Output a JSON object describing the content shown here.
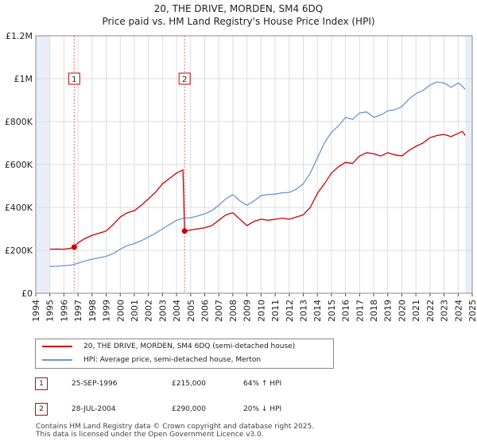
{
  "colors": {
    "property_line": "#cc0000",
    "hpi_line": "#6699cc",
    "sale_marker": "#cc0000",
    "vline": "#e07070",
    "shade": "#e8eef8",
    "grid": "#dddddd"
  },
  "chart_data": {
    "type": "line",
    "title": "20, THE DRIVE, MORDEN, SM4 6DQ",
    "subtitle": "Price paid vs. HM Land Registry's House Price Index (HPI)",
    "xlabel": "",
    "ylabel": "",
    "xlim": [
      1994,
      2025
    ],
    "ylim": [
      0,
      1200000
    ],
    "x_ticks": [
      "1994",
      "1995",
      "1996",
      "1997",
      "1998",
      "1999",
      "2000",
      "2001",
      "2002",
      "2003",
      "2004",
      "2005",
      "2006",
      "2007",
      "2008",
      "2009",
      "2010",
      "2011",
      "2012",
      "2013",
      "2014",
      "2015",
      "2016",
      "2017",
      "2018",
      "2019",
      "2020",
      "2021",
      "2022",
      "2023",
      "2024",
      "2025"
    ],
    "y_ticks": [
      {
        "value": 0,
        "label": "£0"
      },
      {
        "value": 200000,
        "label": "£200K"
      },
      {
        "value": 400000,
        "label": "£400K"
      },
      {
        "value": 600000,
        "label": "£600K"
      },
      {
        "value": 800000,
        "label": "£800K"
      },
      {
        "value": 1000000,
        "label": "£1M"
      },
      {
        "value": 1200000,
        "label": "£1.2M"
      }
    ],
    "grid": true,
    "shaded_ranges": [
      [
        1994,
        1995
      ],
      [
        2024.5,
        2025
      ]
    ],
    "sale_lines": [
      {
        "x": 1996.73,
        "label": "1"
      },
      {
        "x": 2004.57,
        "label": "2"
      }
    ],
    "sale_points": [
      {
        "x": 1996.73,
        "y": 215000
      },
      {
        "x": 2004.57,
        "y": 290000
      }
    ],
    "series": [
      {
        "name": "20, THE DRIVE, MORDEN, SM4 6DQ (semi-detached house)",
        "color": "#cc0000",
        "x": [
          1995,
          1995.5,
          1996,
          1996.5,
          1996.73,
          1997,
          1997.5,
          1998,
          1998.5,
          1999,
          1999.5,
          2000,
          2000.5,
          2001,
          2001.5,
          2002,
          2002.5,
          2003,
          2003.5,
          2004,
          2004.3,
          2004.45,
          2004.5,
          2004.57,
          2005,
          2005.5,
          2006,
          2006.5,
          2007,
          2007.5,
          2008,
          2008.5,
          2009,
          2009.5,
          2010,
          2010.5,
          2011,
          2011.5,
          2012,
          2012.5,
          2013,
          2013.5,
          2014,
          2014.5,
          2015,
          2015.5,
          2016,
          2016.5,
          2017,
          2017.5,
          2018,
          2018.5,
          2019,
          2019.5,
          2020,
          2020.5,
          2021,
          2021.5,
          2022,
          2022.5,
          2023,
          2023.5,
          2024,
          2024.3,
          2024.5
        ],
        "values": [
          205000,
          206000,
          205000,
          210000,
          215000,
          235000,
          255000,
          270000,
          280000,
          290000,
          320000,
          355000,
          375000,
          385000,
          410000,
          440000,
          470000,
          510000,
          535000,
          560000,
          570000,
          575000,
          460000,
          290000,
          295000,
          300000,
          305000,
          315000,
          340000,
          365000,
          375000,
          345000,
          315000,
          335000,
          345000,
          340000,
          345000,
          350000,
          345000,
          355000,
          365000,
          400000,
          465000,
          510000,
          560000,
          590000,
          610000,
          605000,
          640000,
          655000,
          650000,
          640000,
          655000,
          645000,
          640000,
          665000,
          685000,
          700000,
          725000,
          735000,
          740000,
          730000,
          745000,
          755000,
          735000
        ]
      },
      {
        "name": "HPI: Average price, semi-detached house, Merton",
        "color": "#6699cc",
        "x": [
          1995,
          1995.5,
          1996,
          1996.5,
          1997,
          1997.5,
          1998,
          1998.5,
          1999,
          1999.5,
          2000,
          2000.5,
          2001,
          2001.5,
          2002,
          2002.5,
          2003,
          2003.5,
          2004,
          2004.5,
          2005,
          2005.5,
          2006,
          2006.5,
          2007,
          2007.5,
          2008,
          2008.5,
          2009,
          2009.5,
          2010,
          2010.5,
          2011,
          2011.5,
          2012,
          2012.5,
          2013,
          2013.5,
          2014,
          2014.5,
          2015,
          2015.5,
          2016,
          2016.5,
          2017,
          2017.5,
          2018,
          2018.5,
          2019,
          2019.5,
          2020,
          2020.5,
          2021,
          2021.5,
          2022,
          2022.5,
          2023,
          2023.5,
          2024,
          2024.3,
          2024.5
        ],
        "values": [
          125000,
          126000,
          128000,
          131000,
          140000,
          150000,
          158000,
          165000,
          172000,
          185000,
          205000,
          222000,
          232000,
          245000,
          262000,
          280000,
          300000,
          320000,
          340000,
          350000,
          352000,
          360000,
          370000,
          385000,
          410000,
          440000,
          460000,
          430000,
          410000,
          430000,
          455000,
          460000,
          462000,
          468000,
          470000,
          485000,
          510000,
          560000,
          630000,
          700000,
          750000,
          780000,
          820000,
          810000,
          840000,
          845000,
          820000,
          830000,
          850000,
          855000,
          870000,
          905000,
          930000,
          945000,
          970000,
          985000,
          980000,
          960000,
          980000,
          965000,
          950000
        ]
      }
    ]
  },
  "legend": {
    "items": [
      {
        "label": "20, THE DRIVE, MORDEN, SM4 6DQ (semi-detached house)",
        "color": "#cc0000"
      },
      {
        "label": "HPI: Average price, semi-detached house, Merton",
        "color": "#6699cc"
      }
    ]
  },
  "sales": [
    {
      "num": "1",
      "date": "25-SEP-1996",
      "price": "£215,000",
      "hpi": "64% ↑ HPI"
    },
    {
      "num": "2",
      "date": "28-JUL-2004",
      "price": "£290,000",
      "hpi": "20% ↓ HPI"
    }
  ],
  "footer": {
    "line1": "Contains HM Land Registry data © Crown copyright and database right 2025.",
    "line2": "This data is licensed under the Open Government Licence v3.0."
  }
}
